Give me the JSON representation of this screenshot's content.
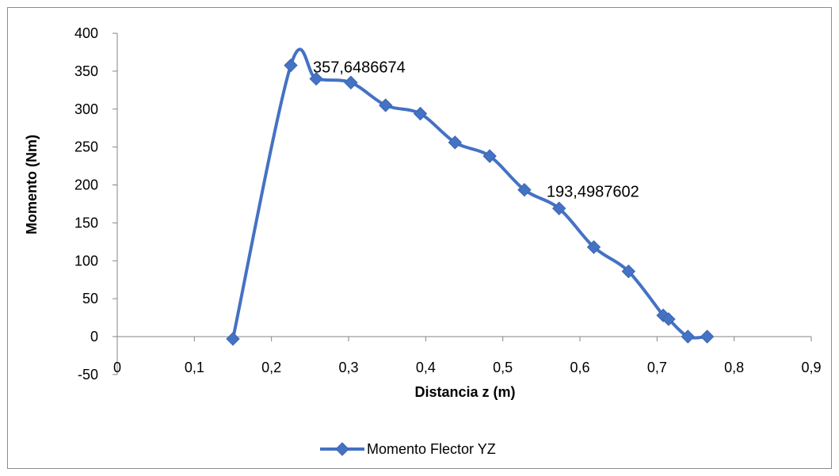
{
  "chart_data": {
    "type": "line",
    "xlabel": "Distancia z (m)",
    "ylabel": "Momento (Nm)",
    "xlim": [
      0,
      0.9
    ],
    "ylim": [
      -50,
      400
    ],
    "x_ticks": [
      "0",
      "0,1",
      "0,2",
      "0,3",
      "0,4",
      "0,5",
      "0,6",
      "0,7",
      "0,8",
      "0,9"
    ],
    "y_ticks": [
      "400",
      "350",
      "300",
      "250",
      "200",
      "150",
      "100",
      "50",
      "0",
      "-50"
    ],
    "grid": false,
    "legend": "bottom",
    "color": "#4472C4",
    "series": [
      {
        "name": "Momento Flector YZ",
        "x": [
          0.15,
          0.225,
          0.258,
          0.303,
          0.348,
          0.393,
          0.438,
          0.483,
          0.528,
          0.573,
          0.618,
          0.663,
          0.708,
          0.715,
          0.74,
          0.765
        ],
        "y": [
          -3,
          357.65,
          340,
          335,
          305,
          294,
          256,
          238,
          193.5,
          169,
          118,
          86,
          28,
          23,
          0,
          0
        ]
      }
    ],
    "annotations": [
      {
        "text": "357,6486674",
        "x": 0.225,
        "y": 357.65
      },
      {
        "text": "193,4987602",
        "x": 0.528,
        "y": 193.5
      }
    ]
  }
}
